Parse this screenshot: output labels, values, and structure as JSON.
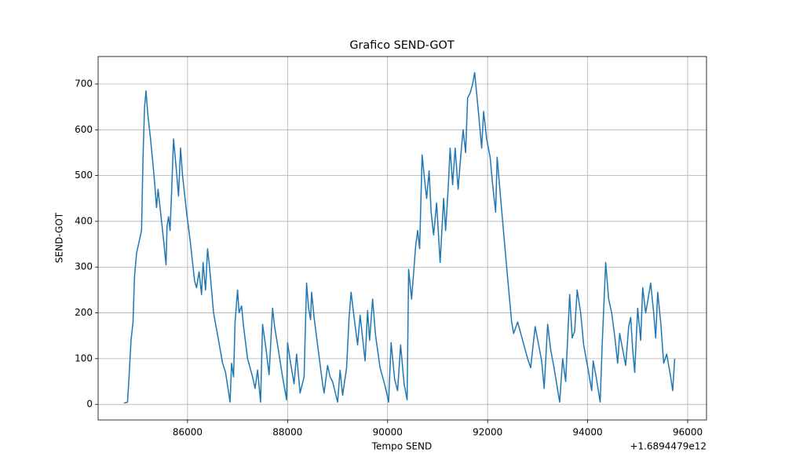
{
  "chart_data": {
    "type": "line",
    "title": "Grafico SEND-GOT",
    "x_label": "Tempo SEND",
    "y_label": "SEND-GOT",
    "x_offset_label": "+1.6894479e12",
    "color": "#1f77b4",
    "grid": true,
    "xlim": [
      84212,
      96376
    ],
    "ylim": [
      -34,
      760
    ],
    "xticks": [
      86000,
      88000,
      90000,
      92000,
      94000,
      96000
    ],
    "yticks": [
      0,
      100,
      200,
      300,
      400,
      500,
      600,
      700
    ],
    "x": [
      84730,
      84800,
      84830,
      84870,
      84910,
      84940,
      84980,
      85040,
      85080,
      85110,
      85140,
      85170,
      85200,
      85260,
      85330,
      85380,
      85410,
      85440,
      85520,
      85570,
      85590,
      85620,
      85650,
      85680,
      85720,
      85770,
      85820,
      85860,
      85900,
      85980,
      86050,
      86140,
      86180,
      86230,
      86280,
      86310,
      86360,
      86400,
      86440,
      86520,
      86620,
      86700,
      86760,
      86850,
      86880,
      86920,
      86950,
      87000,
      87030,
      87080,
      87120,
      87200,
      87300,
      87350,
      87400,
      87460,
      87500,
      87570,
      87630,
      87700,
      87740,
      87800,
      87900,
      87980,
      88000,
      88060,
      88130,
      88180,
      88250,
      88330,
      88380,
      88420,
      88460,
      88480,
      88530,
      88600,
      88700,
      88730,
      88800,
      88850,
      88900,
      89000,
      89050,
      89100,
      89180,
      89230,
      89270,
      89330,
      89400,
      89450,
      89500,
      89550,
      89600,
      89640,
      89700,
      89760,
      89850,
      89950,
      90020,
      90070,
      90140,
      90200,
      90260,
      90330,
      90390,
      90420,
      90480,
      90560,
      90600,
      90640,
      90690,
      90740,
      90780,
      90830,
      90870,
      90920,
      90980,
      91050,
      91120,
      91160,
      91210,
      91250,
      91300,
      91350,
      91410,
      91460,
      91510,
      91560,
      91600,
      91650,
      91700,
      91740,
      91780,
      91840,
      91880,
      91920,
      91980,
      92050,
      92100,
      92160,
      92190,
      92260,
      92380,
      92480,
      92520,
      92600,
      92700,
      92800,
      92860,
      92950,
      93020,
      93080,
      93130,
      93200,
      93260,
      93320,
      93440,
      93500,
      93560,
      93640,
      93690,
      93740,
      93790,
      93860,
      93920,
      94020,
      94080,
      94110,
      94170,
      94250,
      94290,
      94360,
      94420,
      94480,
      94540,
      94600,
      94640,
      94700,
      94760,
      94820,
      94860,
      94900,
      94940,
      95000,
      95060,
      95100,
      95160,
      95200,
      95260,
      95320,
      95360,
      95400,
      95460,
      95520,
      95580,
      95660,
      95700,
      95740
    ],
    "values": [
      3,
      5,
      60,
      140,
      180,
      280,
      330,
      360,
      380,
      540,
      650,
      685,
      640,
      580,
      500,
      430,
      470,
      440,
      360,
      305,
      390,
      410,
      380,
      460,
      580,
      520,
      455,
      560,
      500,
      420,
      360,
      270,
      255,
      290,
      240,
      310,
      250,
      340,
      300,
      200,
      140,
      90,
      70,
      5,
      90,
      60,
      180,
      250,
      200,
      215,
      170,
      100,
      60,
      35,
      75,
      5,
      175,
      120,
      65,
      210,
      170,
      130,
      60,
      10,
      135,
      90,
      45,
      110,
      25,
      60,
      265,
      210,
      185,
      245,
      190,
      130,
      45,
      25,
      85,
      60,
      50,
      5,
      75,
      20,
      80,
      190,
      245,
      190,
      130,
      195,
      145,
      95,
      205,
      140,
      230,
      150,
      80,
      40,
      5,
      135,
      55,
      30,
      130,
      45,
      10,
      295,
      230,
      345,
      380,
      340,
      545,
      490,
      450,
      510,
      420,
      370,
      440,
      310,
      450,
      380,
      470,
      560,
      480,
      560,
      470,
      540,
      600,
      550,
      670,
      680,
      700,
      725,
      680,
      610,
      560,
      640,
      580,
      540,
      480,
      420,
      540,
      450,
      300,
      180,
      155,
      180,
      140,
      100,
      80,
      170,
      130,
      95,
      35,
      175,
      120,
      85,
      5,
      100,
      50,
      240,
      145,
      160,
      250,
      200,
      130,
      70,
      30,
      95,
      60,
      5,
      130,
      310,
      230,
      200,
      150,
      90,
      155,
      120,
      85,
      170,
      190,
      120,
      70,
      210,
      140,
      255,
      200,
      225,
      265,
      200,
      145,
      245,
      180,
      90,
      110,
      60,
      30,
      100
    ]
  }
}
